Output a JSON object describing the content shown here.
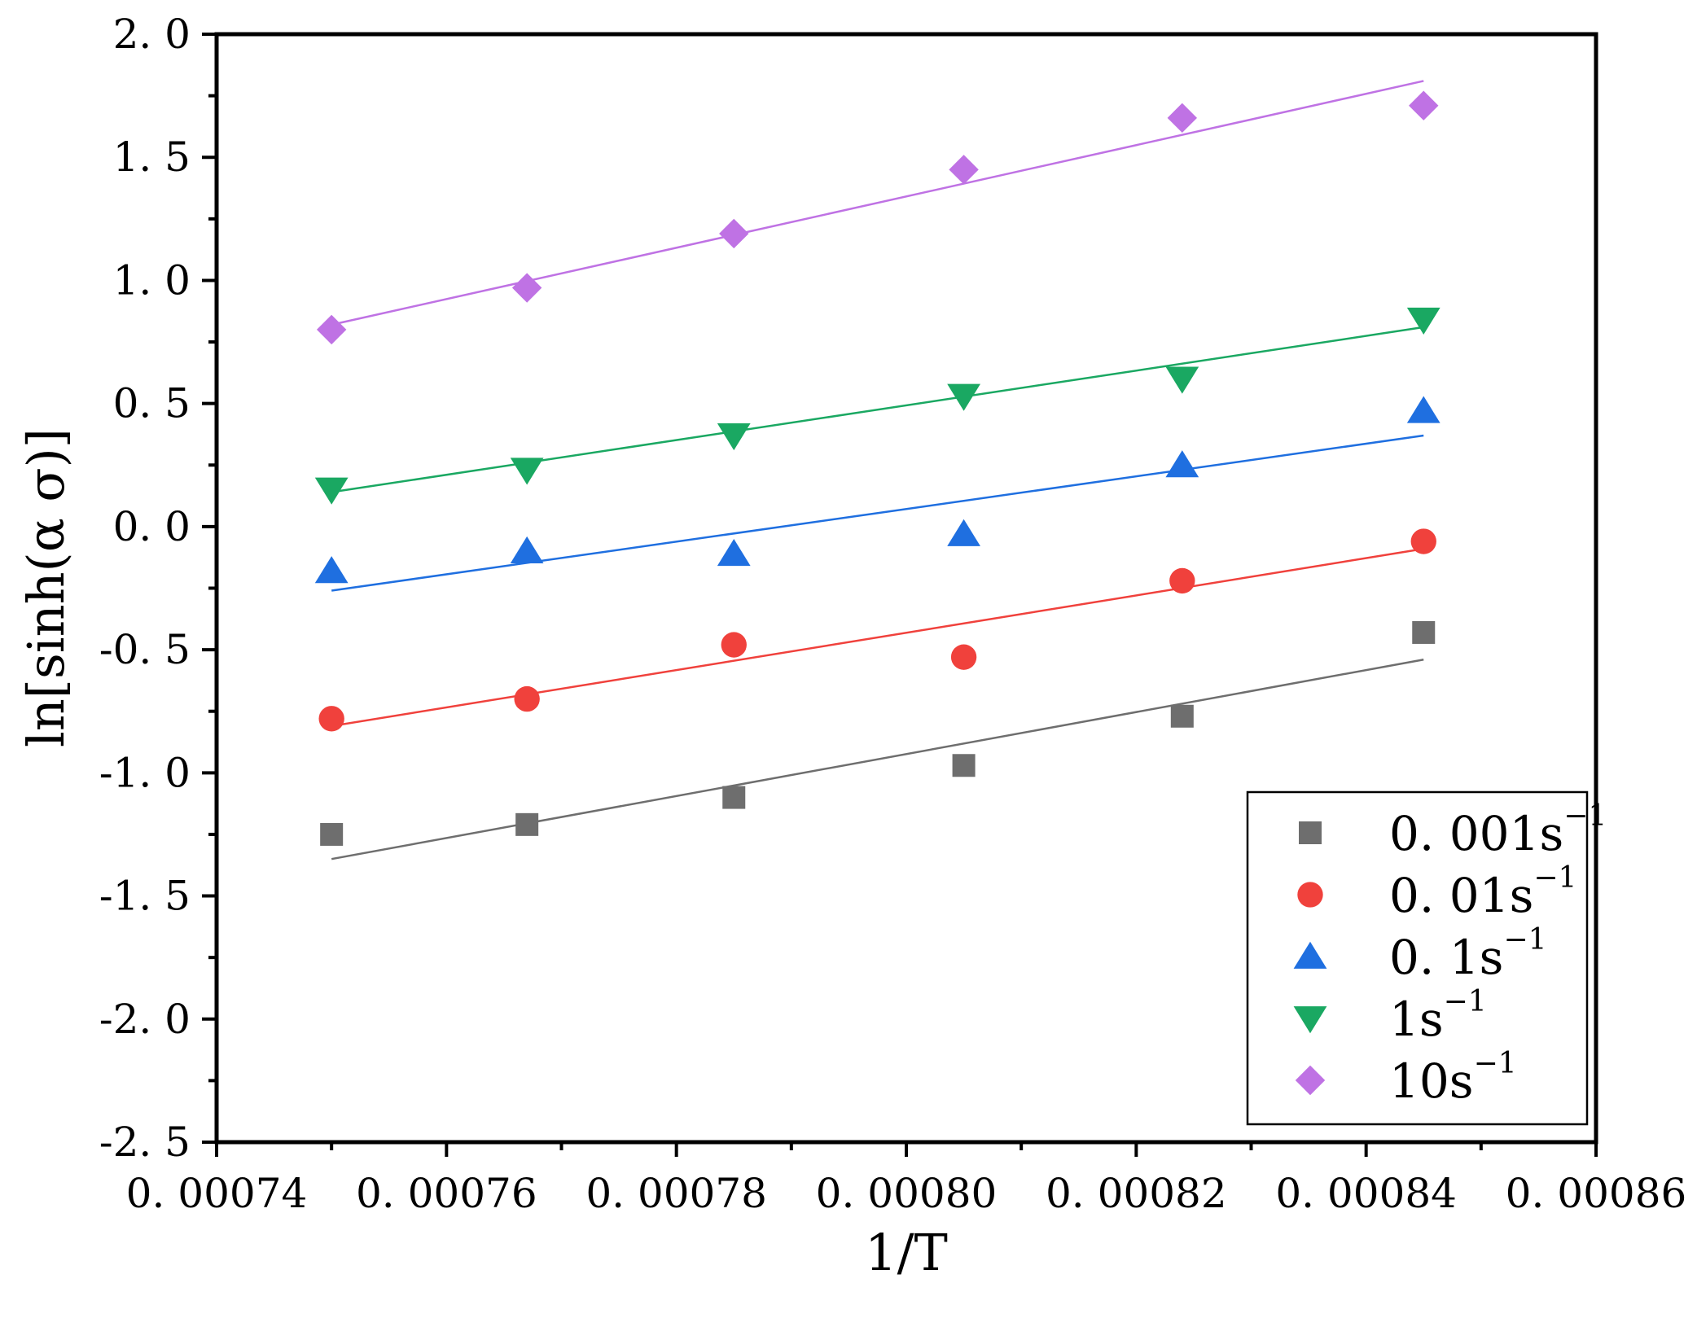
{
  "chart_data": {
    "type": "scatter",
    "title": "",
    "xlabel": "1/T",
    "ylabel": "ln[sinh(α σ)]",
    "xlim": [
      0.00074,
      0.00086
    ],
    "ylim": [
      -2.5,
      2.0
    ],
    "xticks": [
      0.00074,
      0.00076,
      0.00078,
      0.0008,
      0.00082,
      0.00084,
      0.00086
    ],
    "xtick_labels": [
      "0. 00074",
      "0. 00076",
      "0. 00078",
      "0. 00080",
      "0. 00082",
      "0. 00084",
      "0. 00086"
    ],
    "yticks": [
      2.0,
      1.5,
      1.0,
      0.5,
      0.0,
      -0.5,
      -1.0,
      -1.5,
      -2.0,
      -2.5
    ],
    "ytick_labels": [
      "2. 0",
      "1. 5",
      "1. 0",
      "0. 5",
      "0. 0",
      "-0. 5",
      "-1. 0",
      "-1. 5",
      "-2. 0",
      "-2. 5"
    ],
    "grid": false,
    "legend_position": "bottom-right",
    "x": [
      0.00075,
      0.000767,
      0.000785,
      0.000805,
      0.000824,
      0.000845
    ],
    "series": [
      {
        "name": "0. 001s",
        "unit_sup": "−1",
        "marker": "square",
        "color": "#6e6e6e",
        "values": [
          -1.25,
          -1.21,
          -1.1,
          -0.97,
          -0.77,
          -0.43
        ],
        "fit": [
          [
            0.00075,
            -1.35
          ],
          [
            0.000845,
            -0.54
          ]
        ]
      },
      {
        "name": "0. 01s",
        "unit_sup": "−1",
        "marker": "circle",
        "color": "#f0413c",
        "values": [
          -0.78,
          -0.7,
          -0.48,
          -0.53,
          -0.22,
          -0.06
        ],
        "fit": [
          [
            0.00075,
            -0.81
          ],
          [
            0.000845,
            -0.09
          ]
        ]
      },
      {
        "name": "0. 1s",
        "unit_sup": "−1",
        "marker": "triangle-up",
        "color": "#1f6fe0",
        "values": [
          -0.18,
          -0.1,
          -0.11,
          -0.03,
          0.25,
          0.47
        ],
        "fit": [
          [
            0.00075,
            -0.26
          ],
          [
            0.000845,
            0.37
          ]
        ]
      },
      {
        "name": "1s",
        "unit_sup": "−1",
        "marker": "triangle-down",
        "color": "#1aa862",
        "values": [
          0.15,
          0.23,
          0.37,
          0.53,
          0.6,
          0.84
        ],
        "fit": [
          [
            0.00075,
            0.14
          ],
          [
            0.000845,
            0.81
          ]
        ]
      },
      {
        "name": "10s",
        "unit_sup": "−1",
        "marker": "diamond",
        "color": "#bf72e4",
        "values": [
          0.8,
          0.97,
          1.19,
          1.45,
          1.66,
          1.71
        ],
        "fit": [
          [
            0.00075,
            0.82
          ],
          [
            0.000845,
            1.81
          ]
        ]
      }
    ]
  }
}
